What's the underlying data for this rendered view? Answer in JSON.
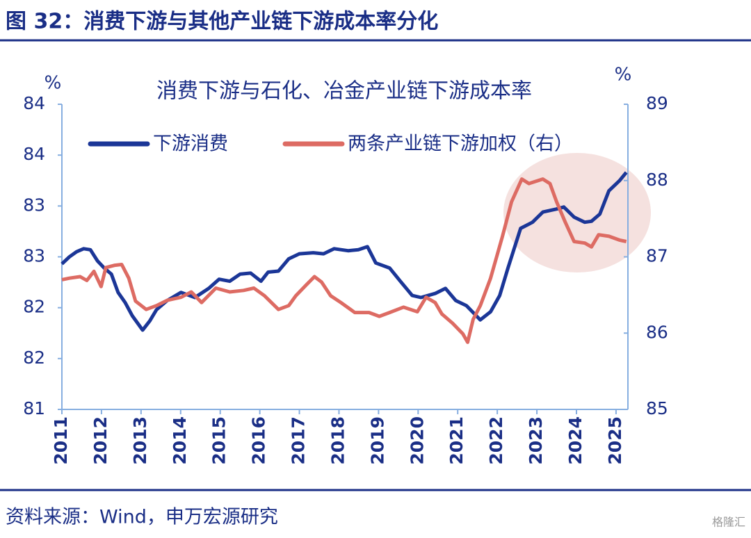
{
  "header": {
    "title": "图 32：消费下游与其他产业链下游成本率分化"
  },
  "chart_data": {
    "type": "line",
    "title": "消费下游与石化、冶金产业链下游成本率",
    "y_unit": "%",
    "y2_unit": "%",
    "xlim": [
      2011,
      2025.3
    ],
    "xticks": [
      2011,
      2012,
      2013,
      2014,
      2015,
      2016,
      2017,
      2018,
      2019,
      2020,
      2021,
      2022,
      2023,
      2024,
      2025
    ],
    "ylim": [
      81,
      84
    ],
    "yticks": [
      81,
      {
        "value": 81.5,
        "label": "82"
      },
      82,
      {
        "value": 82.5,
        "label": "83"
      },
      83,
      {
        "value": 83.5,
        "label": "84"
      },
      84
    ],
    "y2lim": [
      85,
      89
    ],
    "y2ticks": [
      85,
      86,
      87,
      88,
      89
    ],
    "series": [
      {
        "name": "下游消费",
        "color": "#1b3697",
        "x": [
          2011.0,
          2011.19,
          2011.37,
          2011.55,
          2011.72,
          2011.9,
          2012.07,
          2012.25,
          2012.42,
          2012.6,
          2012.78,
          2013.04,
          2013.22,
          2013.39,
          2013.66,
          2014.01,
          2014.36,
          2014.71,
          2014.97,
          2015.24,
          2015.5,
          2015.77,
          2016.03,
          2016.21,
          2016.47,
          2016.73,
          2017.0,
          2017.35,
          2017.61,
          2017.88,
          2018.23,
          2018.49,
          2018.72,
          2018.93,
          2019.28,
          2019.55,
          2019.85,
          2020.07,
          2020.43,
          2020.69,
          2020.95,
          2021.22,
          2021.57,
          2021.83,
          2022.06,
          2022.27,
          2022.59,
          2022.89,
          2023.15,
          2023.5,
          2023.68,
          2023.94,
          2024.21,
          2024.38,
          2024.59,
          2024.82,
          2025.09,
          2025.26
        ],
        "values": [
          82.43,
          82.5,
          82.55,
          82.58,
          82.57,
          82.46,
          82.39,
          82.33,
          82.15,
          82.05,
          81.92,
          81.78,
          81.87,
          81.98,
          82.07,
          82.15,
          82.1,
          82.19,
          82.28,
          82.26,
          82.33,
          82.34,
          82.26,
          82.35,
          82.36,
          82.48,
          82.53,
          82.54,
          82.53,
          82.58,
          82.56,
          82.57,
          82.6,
          82.44,
          82.39,
          82.26,
          82.12,
          82.1,
          82.14,
          82.19,
          82.07,
          82.02,
          81.88,
          81.96,
          82.12,
          82.39,
          82.78,
          82.84,
          82.94,
          82.97,
          82.99,
          82.89,
          82.84,
          82.85,
          82.92,
          83.15,
          83.25,
          83.33
        ]
      },
      {
        "name": "两条产业链下游加权（右）",
        "color": "#dd6b63",
        "axis": "y2",
        "x": [
          2011.0,
          2011.19,
          2011.46,
          2011.63,
          2011.81,
          2011.99,
          2012.11,
          2012.34,
          2012.51,
          2012.69,
          2012.86,
          2013.13,
          2013.39,
          2013.66,
          2014.01,
          2014.27,
          2014.53,
          2014.89,
          2015.24,
          2015.59,
          2015.85,
          2016.12,
          2016.47,
          2016.73,
          2016.91,
          2017.17,
          2017.38,
          2017.56,
          2017.79,
          2018.05,
          2018.4,
          2018.76,
          2019.02,
          2019.28,
          2019.63,
          2019.98,
          2020.2,
          2020.43,
          2020.6,
          2020.87,
          2021.13,
          2021.25,
          2021.39,
          2021.57,
          2021.83,
          2022.13,
          2022.36,
          2022.62,
          2022.8,
          2022.98,
          2023.15,
          2023.33,
          2023.5,
          2023.72,
          2023.94,
          2024.21,
          2024.38,
          2024.56,
          2024.82,
          2025.09,
          2025.26
        ],
        "values": [
          86.7,
          86.72,
          86.74,
          86.69,
          86.81,
          86.61,
          86.86,
          86.89,
          86.9,
          86.72,
          86.42,
          86.31,
          86.36,
          86.43,
          86.47,
          86.54,
          86.4,
          86.59,
          86.54,
          86.56,
          86.59,
          86.49,
          86.31,
          86.36,
          86.49,
          86.63,
          86.74,
          86.67,
          86.49,
          86.4,
          86.27,
          86.27,
          86.22,
          86.27,
          86.34,
          86.28,
          86.47,
          86.4,
          86.25,
          86.13,
          85.99,
          85.88,
          86.18,
          86.36,
          86.72,
          87.27,
          87.72,
          88.02,
          87.96,
          87.99,
          88.02,
          87.96,
          87.72,
          87.45,
          87.2,
          87.18,
          87.13,
          87.29,
          87.27,
          87.22,
          87.2
        ]
      }
    ]
  },
  "source": "资料来源：Wind，申万宏源研究",
  "watermark": "格隆汇"
}
